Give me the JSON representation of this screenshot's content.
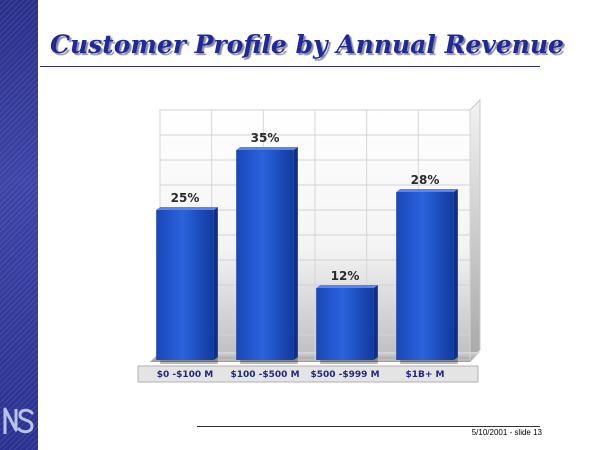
{
  "slide": {
    "title": "Customer Profile by Annual Revenue",
    "footer": "5/10/2001 - slide 13"
  },
  "colors": {
    "band": "#2a2f8a",
    "title": "#1f2a9a",
    "bar": "#1a4fc4"
  },
  "icons": {
    "logo": "ns-logo"
  },
  "chart_data": {
    "type": "bar",
    "categories": [
      "$0 -$100 M",
      "$100 -$500 M",
      "$500 -$999 M",
      "$1B+ M"
    ],
    "values": [
      25,
      35,
      12,
      28
    ],
    "data_labels": [
      "25%",
      "35%",
      "12%",
      "28%"
    ],
    "title": "",
    "xlabel": "",
    "ylabel": "",
    "ylim": [
      0,
      40
    ],
    "grid": true,
    "legend": "none"
  }
}
